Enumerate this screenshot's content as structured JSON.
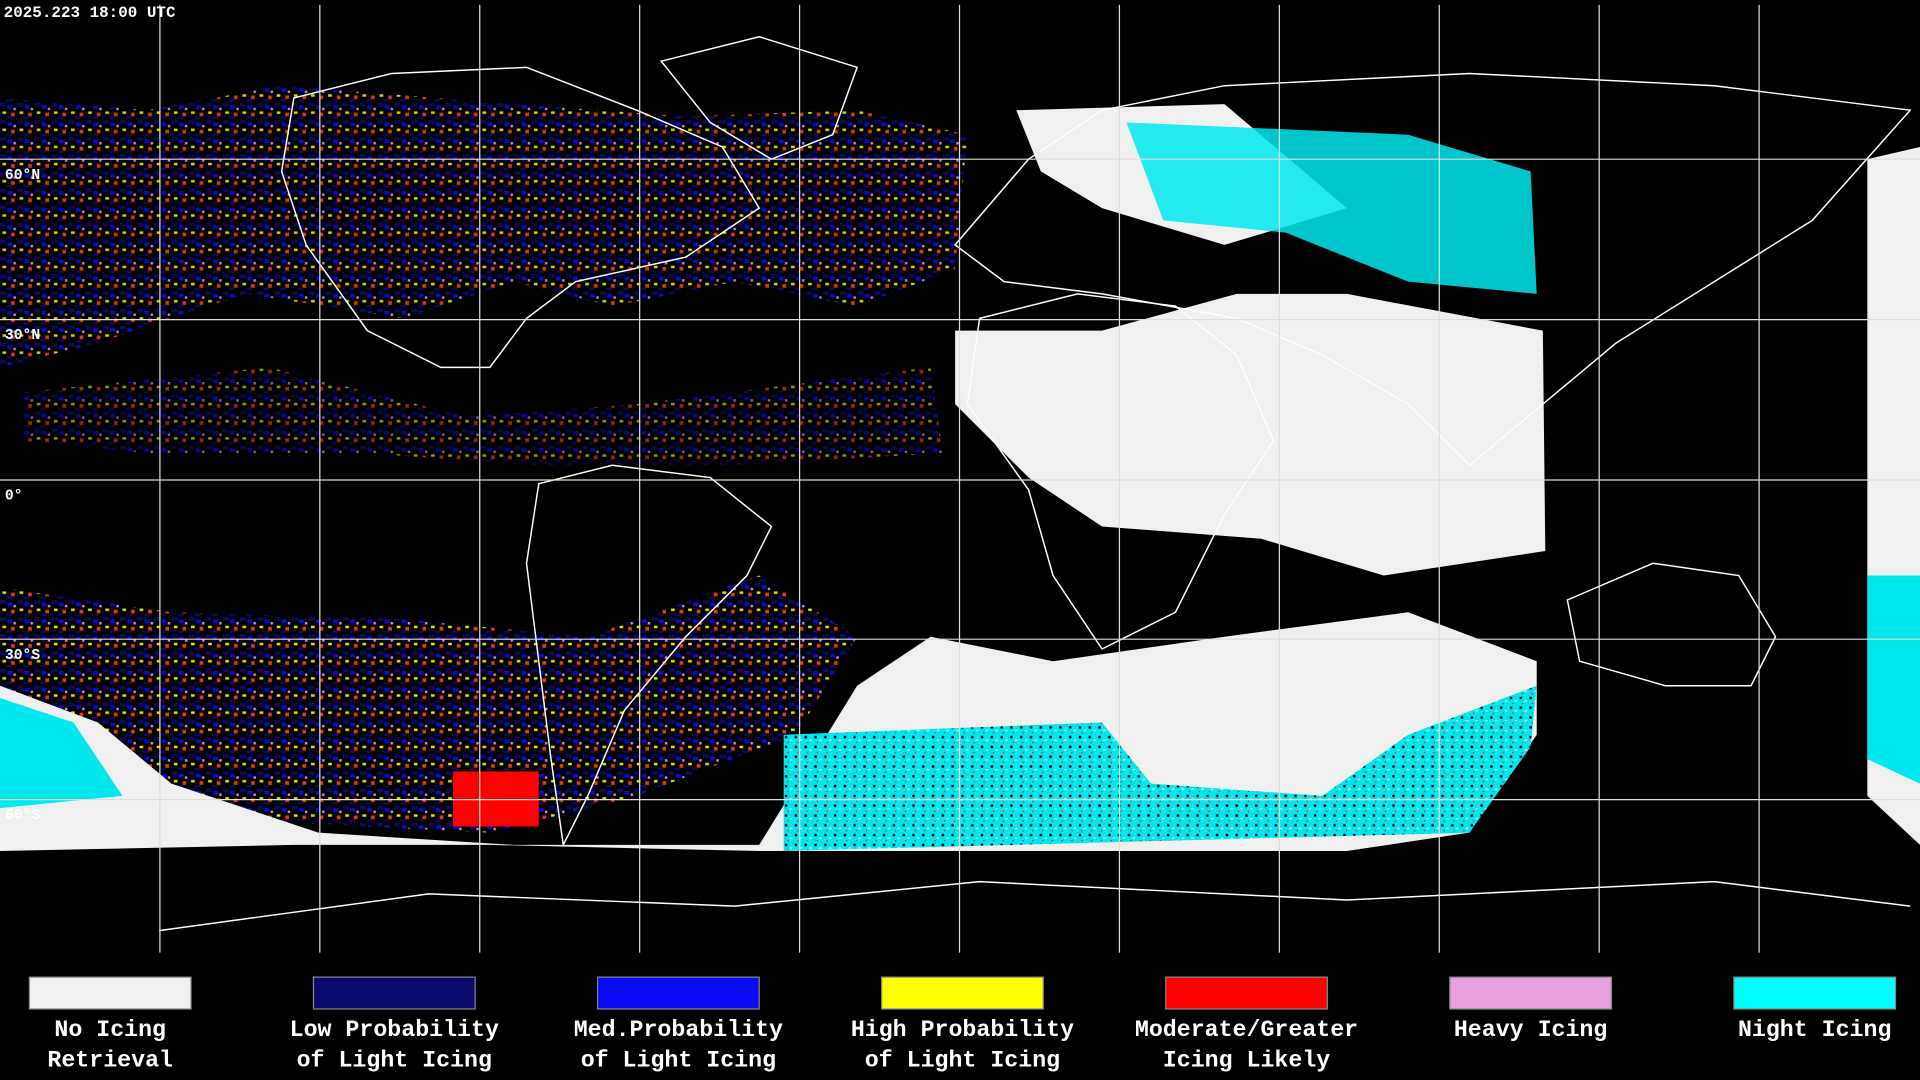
{
  "timestamp": "2025.223 18:00 UTC",
  "latitude_labels": [
    "60°N",
    "30°N",
    "0°",
    "30°S",
    "60°S"
  ],
  "legend": [
    {
      "color": "#f0f0f0",
      "label": [
        "No Icing",
        "Retrieval"
      ]
    },
    {
      "color": "#0a0a6e",
      "label": [
        "Low Probability",
        "of Light Icing"
      ]
    },
    {
      "color": "#0a0af5",
      "label": [
        "Med.Probability",
        "of Light Icing"
      ]
    },
    {
      "color": "#ffff00",
      "label": [
        "High Probability",
        "of Light Icing"
      ]
    },
    {
      "color": "#ff0000",
      "label": [
        "Moderate/Greater",
        "Icing Likely"
      ]
    },
    {
      "color": "#e8a0e0",
      "label": [
        "Heavy Icing"
      ]
    },
    {
      "color": "#00ffff",
      "label": [
        "Night Icing"
      ]
    }
  ]
}
